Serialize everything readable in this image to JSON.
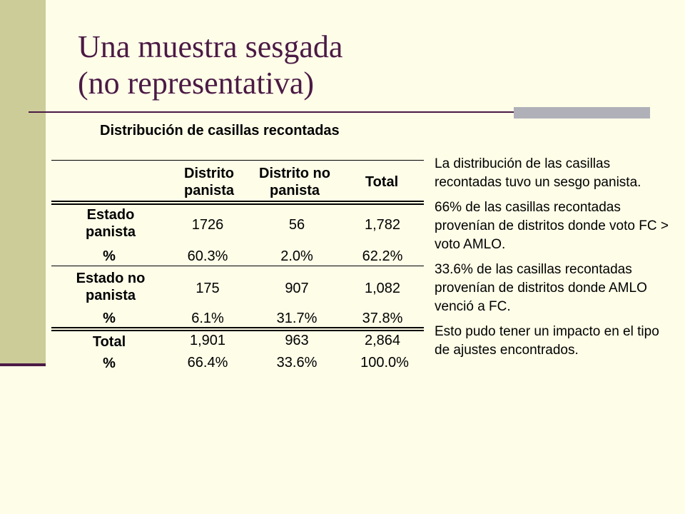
{
  "slide": {
    "title_line1": "Una muestra sesgada",
    "title_line2": "(no representativa)"
  },
  "table": {
    "title": "Distribución de casillas recontadas",
    "headers": {
      "col1_line1": "Distrito",
      "col1_line2": "panista",
      "col2_line1": "Distrito no",
      "col2_line2": "panista",
      "col3": "Total"
    },
    "rows": [
      {
        "label_line1": "Estado",
        "label_line2": "panista",
        "values": [
          "1726",
          "56",
          "1,782"
        ]
      },
      {
        "label": "%",
        "values": [
          "60.3%",
          "2.0%",
          "62.2%"
        ]
      },
      {
        "label_line1": "Estado no",
        "label_line2": "panista",
        "values": [
          "175",
          "907",
          "1,082"
        ]
      },
      {
        "label": "%",
        "values": [
          "6.1%",
          "31.7%",
          "37.8%"
        ]
      },
      {
        "label": "Total",
        "values": [
          "1,901",
          "963",
          "2,864"
        ]
      },
      {
        "label": "%",
        "values": [
          "66.4%",
          "33.6%",
          "100.0%"
        ]
      }
    ]
  },
  "side_paragraphs": [
    "La distribución de las casillas recontadas tuvo un sesgo panista.",
    "66% de las casillas recontadas provenían de distritos donde voto FC > voto AMLO.",
    "33.6% de las casillas recontadas provenían de distritos donde AMLO venció a FC.",
    "Esto pudo tener un impacto en el tipo de ajustes encontrados."
  ]
}
